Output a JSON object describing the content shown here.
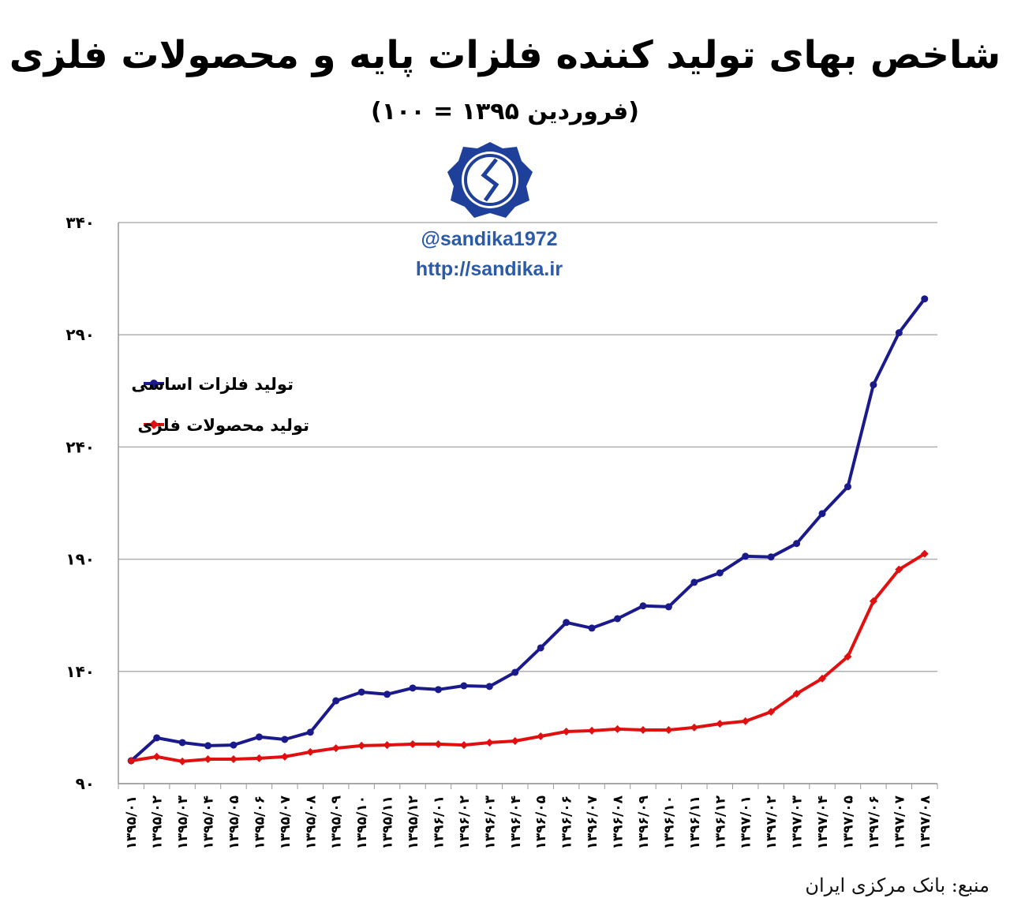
{
  "title": "شاخص بهای تولید کننده فلزات پایه و محصولات فلزی",
  "subtitle": "(فروردین ۱۳۹۵ = ۱۰۰)",
  "watermark": {
    "handle": "@sandika1972",
    "url": "http://sandika.ir"
  },
  "source": "منبع: بانک مرکزی ایران",
  "colors": {
    "basic_metals": "#1a1a8c",
    "metal_products": "#e01010",
    "grid": "#b0b0b0",
    "watermark": "#2b5aa8"
  },
  "chart_data": {
    "type": "line",
    "ylim": [
      90,
      340
    ],
    "yticks": [
      90,
      140,
      190,
      240,
      290,
      340
    ],
    "ytick_labels": [
      "۹۰",
      "۱۴۰",
      "۱۹۰",
      "۲۴۰",
      "۲۹۰",
      "۳۴۰"
    ],
    "grid": "horizontal",
    "legend_placement": "upper-left",
    "categories": [
      "۱۳۹۵/۰۱",
      "۱۳۹۵/۰۲",
      "۱۳۹۵/۰۳",
      "۱۳۹۵/۰۴",
      "۱۳۹۵/۰۵",
      "۱۳۹۵/۰۶",
      "۱۳۹۵/۰۷",
      "۱۳۹۵/۰۸",
      "۱۳۹۵/۰۹",
      "۱۳۹۵/۱۰",
      "۱۳۹۵/۱۱",
      "۱۳۹۵/۱۲",
      "۱۳۹۶/۰۱",
      "۱۳۹۶/۰۲",
      "۱۳۹۶/۰۳",
      "۱۳۹۶/۰۴",
      "۱۳۹۶/۰۵",
      "۱۳۹۶/۰۶",
      "۱۳۹۶/۰۷",
      "۱۳۹۶/۰۸",
      "۱۳۹۶/۰۹",
      "۱۳۹۶/۱۰",
      "۱۳۹۶/۱۱",
      "۱۳۹۶/۱۲",
      "۱۳۹۷/۰۱",
      "۱۳۹۷/۰۲",
      "۱۳۹۷/۰۳",
      "۱۳۹۷/۰۴",
      "۱۳۹۷/۰۵",
      "۱۳۹۷/۰۶",
      "۱۳۹۷/۰۷",
      "۱۳۹۷/۰۸"
    ],
    "series": [
      {
        "name": "تولید فلزات اساسی",
        "color": "#1a1a8c",
        "values": [
          100.2,
          110.4,
          108.3,
          106.9,
          107.2,
          110.8,
          109.7,
          112.9,
          126.9,
          130.8,
          129.8,
          132.6,
          131.9,
          133.6,
          133.3,
          139.6,
          150.5,
          161.8,
          159.3,
          163.5,
          169.2,
          168.8,
          179.7,
          183.9,
          191.3,
          191.0,
          197.0,
          210.3,
          222.3,
          267.7,
          290.9,
          306.0
        ]
      },
      {
        "name": "تولید محصولات فلزی",
        "color": "#e01010",
        "values": [
          100.2,
          102.0,
          99.9,
          100.9,
          100.9,
          101.3,
          102.0,
          104.1,
          105.8,
          106.9,
          107.2,
          107.6,
          107.6,
          107.2,
          108.3,
          109.0,
          111.1,
          113.2,
          113.6,
          114.3,
          113.9,
          113.9,
          115.0,
          116.7,
          117.8,
          122.0,
          130.1,
          136.8,
          146.6,
          171.3,
          185.4,
          192.4
        ]
      }
    ]
  }
}
